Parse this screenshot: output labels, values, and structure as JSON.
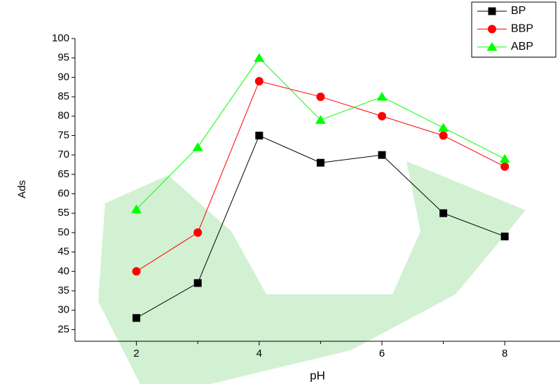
{
  "chart_data": {
    "type": "line",
    "x_label": "pH",
    "y_label": "Ads",
    "x": [
      2,
      3,
      4,
      5,
      6,
      7,
      8
    ],
    "series": [
      {
        "name": "BP",
        "color": "#000000",
        "marker": "square",
        "values": [
          28,
          37,
          75,
          68,
          70,
          55,
          49
        ]
      },
      {
        "name": "BBP",
        "color": "#ff0000",
        "marker": "circle",
        "values": [
          40,
          50,
          89,
          85,
          80,
          75,
          67
        ]
      },
      {
        "name": "ABP",
        "color": "#00ff00",
        "marker": "triangle",
        "values": [
          56,
          72,
          95,
          79,
          85,
          77,
          69
        ]
      }
    ],
    "xlim": [
      1,
      8.9
    ],
    "xticks": [
      2,
      4,
      6,
      8
    ],
    "xminorticks": [
      3,
      5,
      7
    ],
    "ylim": [
      22,
      100
    ],
    "yticks": [
      25,
      30,
      35,
      40,
      45,
      50,
      55,
      60,
      65,
      70,
      75,
      80,
      85,
      90,
      95,
      100
    ],
    "legend": "top-right"
  }
}
